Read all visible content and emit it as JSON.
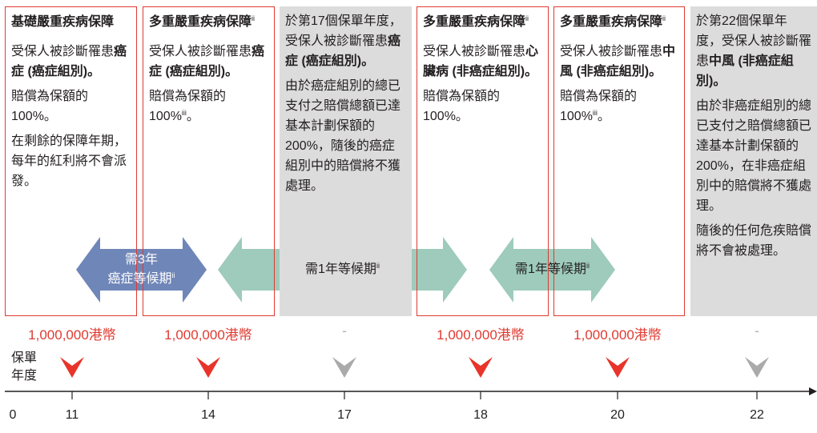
{
  "boxes": [
    {
      "title": [
        {
          "b": "基礎嚴重疾病保障"
        }
      ],
      "paragraphs": [
        [
          {
            "t": "受保人被診斷罹患"
          },
          {
            "b": "癌症 (癌症組別)。"
          }
        ],
        [
          {
            "t": "賠償為保額的100%。"
          }
        ],
        [
          {
            "t": "在剩餘的保障年期，每年的紅利將不會派發。"
          }
        ]
      ]
    },
    {
      "title": [
        {
          "b": "多重嚴重疾病保障"
        },
        {
          "sup": "ii"
        }
      ],
      "paragraphs": [
        [
          {
            "t": "受保人被診斷罹患"
          },
          {
            "b": "癌症 (癌症組別)。"
          }
        ],
        [
          {
            "t": "賠償為保額的100%"
          },
          {
            "sup": "iii"
          },
          {
            "t": "。"
          }
        ]
      ]
    },
    {
      "paragraphs": [
        [
          {
            "t": "於第17個保單年度，受保人被診斷罹患"
          },
          {
            "b": "癌症 (癌症組別)。"
          }
        ],
        [
          {
            "t": "由於癌症組別的總已支付之賠償總額已達基本計劃保額的200%，隨後的癌症組別中的賠償將不獲處理。"
          }
        ]
      ]
    },
    {
      "title": [
        {
          "b": "多重嚴重疾病保障"
        },
        {
          "sup": "ii"
        }
      ],
      "paragraphs": [
        [
          {
            "t": "受保人被診斷罹患"
          },
          {
            "b": "心臟病 (非癌症組別)。"
          }
        ],
        [
          {
            "t": "賠償為保額的100%。"
          }
        ]
      ]
    },
    {
      "title": [
        {
          "b": "多重嚴重疾病保障"
        },
        {
          "sup": "ii"
        }
      ],
      "paragraphs": [
        [
          {
            "t": "受保人被診斷罹患"
          },
          {
            "b": "中風 (非癌症組別)。"
          }
        ],
        [
          {
            "t": "賠償為保額的100%"
          },
          {
            "sup": "iii"
          },
          {
            "t": "。"
          }
        ]
      ]
    },
    {
      "paragraphs": [
        [
          {
            "t": "於第22個保單年度，受保人被診斷罹患"
          },
          {
            "b": "中風 (非癌症組別)。"
          }
        ],
        [
          {
            "t": "由於非癌症組別的總已支付之賠償總額已達基本計劃保額的 200%，在非癌症組別中的賠償將不獲處理。"
          }
        ],
        [
          {
            "t": "隨後的任何危疾賠償將不會被處理。"
          }
        ]
      ]
    }
  ],
  "arrows": [
    {
      "lines": [
        [
          {
            "t": "需3年"
          }
        ],
        [
          {
            "t": "癌症等候期"
          },
          {
            "sup": "ii"
          }
        ]
      ]
    },
    {
      "lines": [
        [
          {
            "t": "需1年等候期"
          },
          {
            "sup": "ii"
          }
        ]
      ]
    },
    {
      "lines": [
        [
          {
            "t": "需1年等候期"
          },
          {
            "sup": "ii"
          }
        ]
      ]
    }
  ],
  "timeline": {
    "label": [
      "保單",
      "年度"
    ],
    "origin": "0",
    "points": [
      {
        "year": "11",
        "amount": "1,000,000港幣"
      },
      {
        "year": "14",
        "amount": "1,000,000港幣"
      },
      {
        "year": "17",
        "amount": "-"
      },
      {
        "year": "18",
        "amount": "1,000,000港幣"
      },
      {
        "year": "20",
        "amount": "1,000,000港幣"
      },
      {
        "year": "22",
        "amount": "-"
      }
    ]
  }
}
